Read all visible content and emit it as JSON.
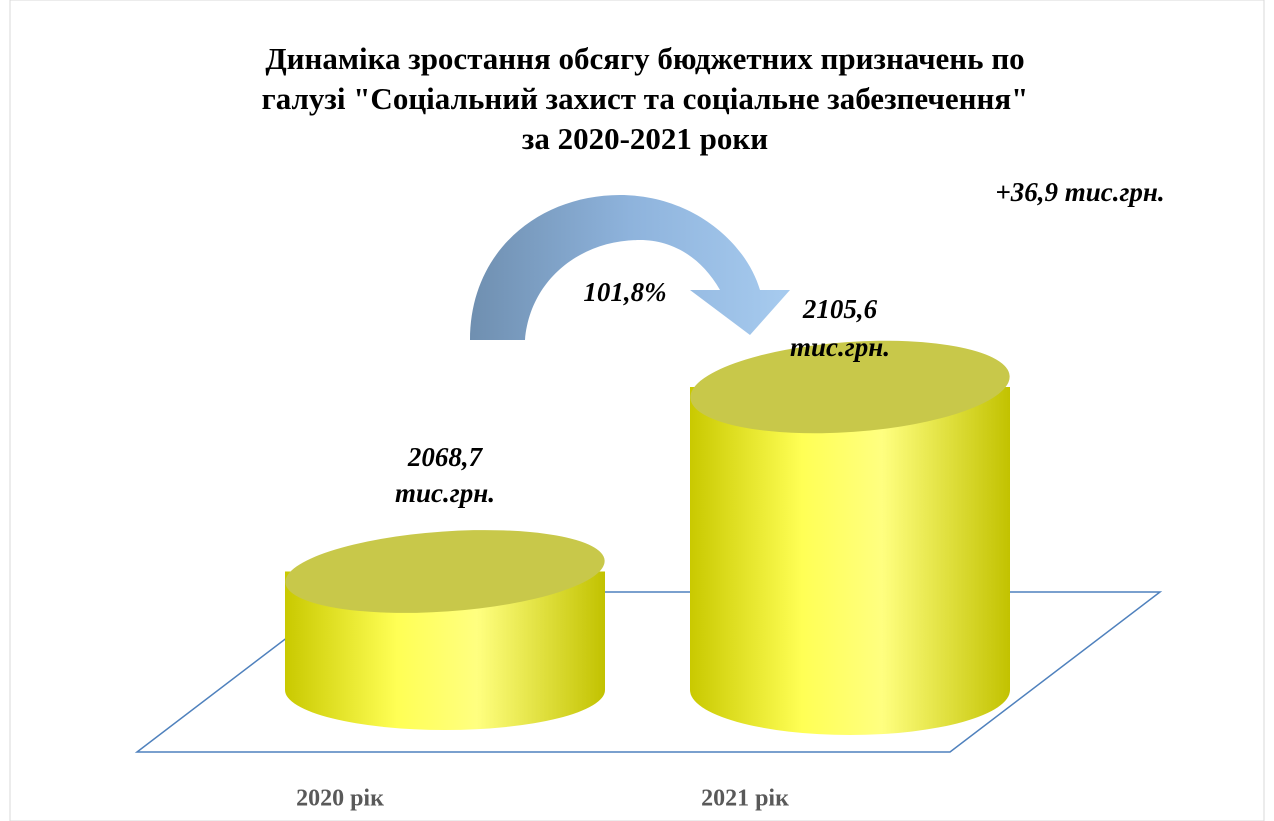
{
  "chart_data": {
    "type": "cylinder",
    "title": [
      "Динаміка зростання обсягу бюджетних призначень по",
      "галузі \"Соціальний захист та соціальне забезпечення\"",
      "за 2020-2021 роки"
    ],
    "categories": [
      "2020 рік",
      "2021 рік"
    ],
    "values": [
      2068.7,
      2105.6
    ],
    "value_labels": [
      [
        "2068,7",
        "тис.грн."
      ],
      [
        "2105,6",
        "тис.грн."
      ]
    ],
    "color": "#ffff33",
    "ylim": [
      2045,
      2125
    ],
    "annotations": [
      "101,8%",
      "+36,9 тис.грн."
    ]
  }
}
